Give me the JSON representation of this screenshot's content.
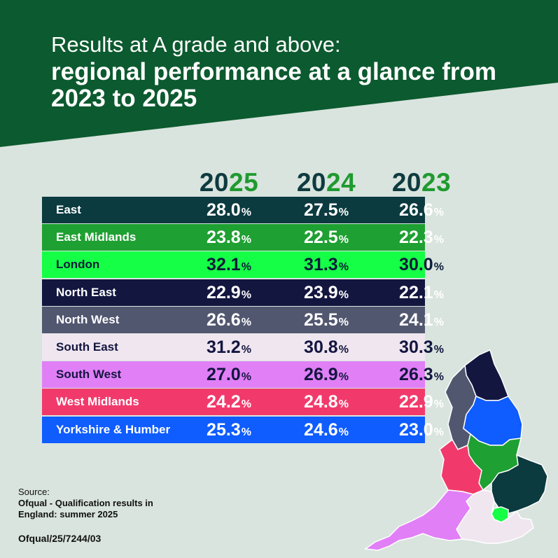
{
  "title": {
    "line1": "Results at A grade and above:",
    "line2": "regional performance at a glance from 2023 to 2025"
  },
  "colors": {
    "header_bg": "#0c5a2f",
    "page_bg": "#d9e4de",
    "year_dark": "#0e3b3f",
    "year_green": "#1f9a2f"
  },
  "chart_data": {
    "type": "table",
    "title": "Results at A grade and above: regional performance at a glance from 2023 to 2025",
    "years": [
      {
        "a": "20",
        "b": "25"
      },
      {
        "a": "20",
        "b": "24"
      },
      {
        "a": "20",
        "b": "23"
      }
    ],
    "unit": "%",
    "rows": [
      {
        "region": "East",
        "values": [
          "28.0",
          "27.5",
          "26.6"
        ],
        "bg": "#0b3a3f",
        "fg": "#ffffff"
      },
      {
        "region": "East Midlands",
        "values": [
          "23.8",
          "22.5",
          "22.3"
        ],
        "bg": "#1fa032",
        "fg": "#ffffff"
      },
      {
        "region": "London",
        "values": [
          "32.1",
          "31.3",
          "30.0"
        ],
        "bg": "#14ff45",
        "fg": "#0b1c3a"
      },
      {
        "region": "North East",
        "values": [
          "22.9",
          "23.9",
          "22.1"
        ],
        "bg": "#13163f",
        "fg": "#ffffff"
      },
      {
        "region": "North West",
        "values": [
          "26.6",
          "25.5",
          "24.1"
        ],
        "bg": "#525770",
        "fg": "#ffffff"
      },
      {
        "region": "South East",
        "values": [
          "31.2",
          "30.8",
          "30.3"
        ],
        "bg": "#f0e6f0",
        "fg": "#13163f"
      },
      {
        "region": "South West",
        "values": [
          "27.0",
          "26.9",
          "26.3"
        ],
        "bg": "#e17ff7",
        "fg": "#13163f"
      },
      {
        "region": "West Midlands",
        "values": [
          "24.2",
          "24.8",
          "22.9"
        ],
        "bg": "#f13a6b",
        "fg": "#ffffff"
      },
      {
        "region": "Yorkshire & Humber",
        "values": [
          "25.3",
          "24.6",
          "23.0"
        ],
        "bg": "#0f5cff",
        "fg": "#ffffff"
      }
    ]
  },
  "source": {
    "label": "Source:",
    "text": "Ofqual - Qualification results in England: summer 2025"
  },
  "doc_ref": "Ofqual/25/7244/03"
}
